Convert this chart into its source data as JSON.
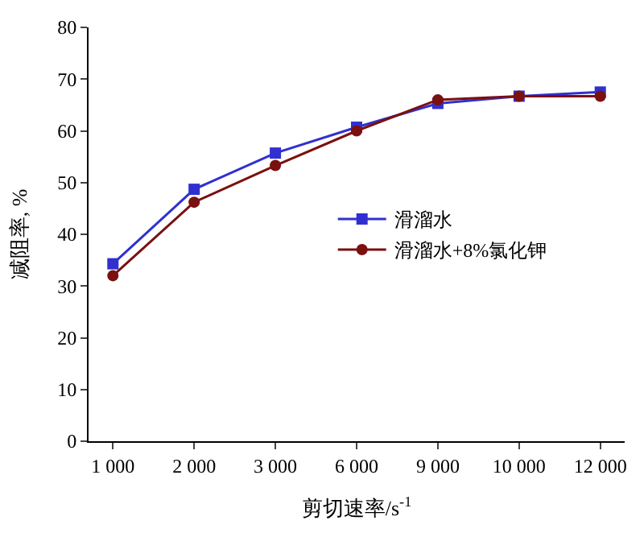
{
  "chart_data": {
    "type": "line",
    "xlabel": "剪切速率/s$^{-1}$",
    "ylabel": "减阻率, %",
    "categories": [
      "1 000",
      "2 000",
      "3 000",
      "6 000",
      "9 000",
      "10 000",
      "12 000"
    ],
    "series": [
      {
        "name": "滑溜水",
        "color": "#3030d0",
        "marker": "square",
        "values": [
          34.3,
          48.7,
          55.7,
          60.7,
          65.3,
          66.7,
          67.5
        ]
      },
      {
        "name": "滑溜水+8%氯化钾",
        "color": "#7a1010",
        "marker": "circle",
        "values": [
          32.0,
          46.2,
          53.3,
          60.0,
          66.0,
          66.7,
          66.7
        ]
      }
    ],
    "ylim": [
      0,
      80
    ],
    "yticks": [
      0,
      10,
      20,
      30,
      40,
      50,
      60,
      70,
      80
    ],
    "legend": "right",
    "line_style": "solid"
  }
}
